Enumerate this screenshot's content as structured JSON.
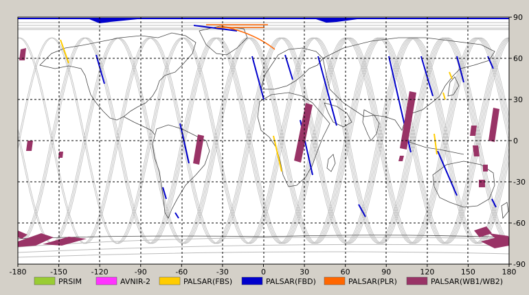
{
  "map": {
    "x_ticks": [
      "-180",
      "-150",
      "-120",
      "-90",
      "-60",
      "-30",
      "0",
      "30",
      "60",
      "90",
      "120",
      "150",
      "180"
    ],
    "y_ticks_right": [
      "90",
      "60",
      "30",
      "0",
      "-30",
      "-60",
      "-90"
    ]
  },
  "legend": [
    {
      "label": "PRSIM",
      "color": "#99cc33"
    },
    {
      "label": "AVNIR-2",
      "color": "#ff33ff"
    },
    {
      "label": "PALSAR(FBS)",
      "color": "#ffcc00"
    },
    {
      "label": "PALSAR(FBD)",
      "color": "#0000cc"
    },
    {
      "label": "PALSAR(PLR)",
      "color": "#ff6600"
    },
    {
      "label": "PALSAR(WB1/WB2)",
      "color": "#993366"
    }
  ],
  "colors": {
    "background": "#d4d0c8",
    "map_bg": "#ffffff",
    "orbit": "#bbbbbb",
    "coast": "#444444"
  }
}
